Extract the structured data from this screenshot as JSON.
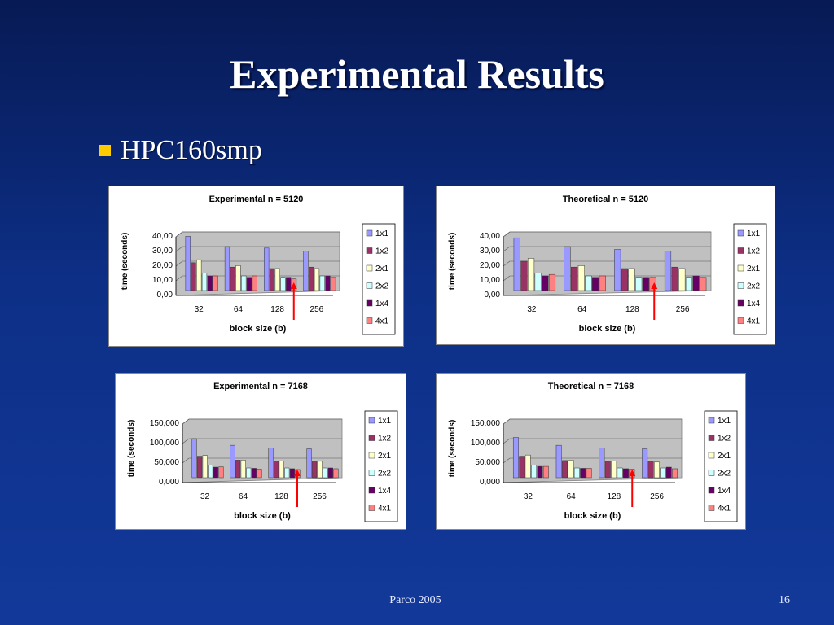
{
  "slide": {
    "title": "Experimental Results",
    "bullet": "HPC160smp",
    "footer_left": "Parco 2005",
    "footer_right": "16"
  },
  "colors": {
    "accent_bullet": "#ffcc00",
    "plot_area": "#c0c0c0",
    "arrow": "#ff0000"
  },
  "chart_data": [
    {
      "type": "bar",
      "title": "Experimental n = 5120",
      "xlabel": "block size (b)",
      "ylabel": "time (seconds)",
      "categories": [
        "32",
        "64",
        "128",
        "256"
      ],
      "ylim": [
        0,
        40
      ],
      "yticks": [
        "0,00",
        "10,00",
        "20,00",
        "30,00",
        "40,00"
      ],
      "arrow_category": "128",
      "series": [
        {
          "name": "1x1",
          "color": "#9999ff",
          "values": [
            37,
            30,
            29,
            27
          ]
        },
        {
          "name": "1x2",
          "color": "#993366",
          "values": [
            19,
            16,
            15,
            16
          ]
        },
        {
          "name": "2x1",
          "color": "#ffffcc",
          "values": [
            21,
            17,
            15,
            15
          ]
        },
        {
          "name": "2x2",
          "color": "#ccffff",
          "values": [
            12,
            10,
            9,
            10
          ]
        },
        {
          "name": "1x4",
          "color": "#660066",
          "values": [
            10,
            9,
            9,
            10
          ]
        },
        {
          "name": "4x1",
          "color": "#ff8080",
          "values": [
            10,
            10,
            8,
            9
          ]
        }
      ]
    },
    {
      "type": "bar",
      "title": "Theoretical n = 5120",
      "xlabel": "block size (b)",
      "ylabel": "time (seconds)",
      "categories": [
        "32",
        "64",
        "128",
        "256"
      ],
      "ylim": [
        0,
        40
      ],
      "yticks": [
        "0,00",
        "10,00",
        "20,00",
        "30,00",
        "40,00"
      ],
      "arrow_category": "128",
      "series": [
        {
          "name": "1x1",
          "color": "#9999ff",
          "values": [
            36,
            30,
            28,
            27
          ]
        },
        {
          "name": "1x2",
          "color": "#993366",
          "values": [
            20,
            16,
            15,
            16
          ]
        },
        {
          "name": "2x1",
          "color": "#ffffcc",
          "values": [
            22,
            17,
            15,
            15
          ]
        },
        {
          "name": "2x2",
          "color": "#ccffff",
          "values": [
            12,
            10,
            9,
            9
          ]
        },
        {
          "name": "1x4",
          "color": "#660066",
          "values": [
            10,
            9,
            9,
            10
          ]
        },
        {
          "name": "4x1",
          "color": "#ff8080",
          "values": [
            11,
            10,
            9,
            9
          ]
        }
      ]
    },
    {
      "type": "bar",
      "title": "Experimental n = 7168",
      "xlabel": "block size (b)",
      "ylabel": "time (seconds)",
      "categories": [
        "32",
        "64",
        "128",
        "256"
      ],
      "ylim": [
        0,
        150
      ],
      "yticks": [
        "0,000",
        "50,000",
        "100,000",
        "150,000"
      ],
      "arrow_category": "128",
      "series": [
        {
          "name": "1x1",
          "color": "#9999ff",
          "values": [
            100,
            83,
            76,
            74
          ]
        },
        {
          "name": "1x2",
          "color": "#993366",
          "values": [
            55,
            45,
            43,
            43
          ]
        },
        {
          "name": "2x1",
          "color": "#ffffcc",
          "values": [
            57,
            45,
            43,
            42
          ]
        },
        {
          "name": "2x2",
          "color": "#ccffff",
          "values": [
            32,
            25,
            25,
            25
          ]
        },
        {
          "name": "1x4",
          "color": "#660066",
          "values": [
            27,
            24,
            23,
            25
          ]
        },
        {
          "name": "4x1",
          "color": "#ff8080",
          "values": [
            28,
            22,
            21,
            23
          ]
        }
      ]
    },
    {
      "type": "bar",
      "title": "Theoretical n = 7168",
      "xlabel": "block size (b)",
      "ylabel": "time (seconds)",
      "categories": [
        "32",
        "64",
        "128",
        "256"
      ],
      "ylim": [
        0,
        150
      ],
      "yticks": [
        "0,000",
        "50,000",
        "100,000",
        "150,000"
      ],
      "arrow_category": "128",
      "series": [
        {
          "name": "1x1",
          "color": "#9999ff",
          "values": [
            103,
            83,
            76,
            74
          ]
        },
        {
          "name": "1x2",
          "color": "#993366",
          "values": [
            55,
            44,
            42,
            42
          ]
        },
        {
          "name": "2x1",
          "color": "#ffffcc",
          "values": [
            58,
            45,
            43,
            40
          ]
        },
        {
          "name": "2x2",
          "color": "#ccffff",
          "values": [
            32,
            25,
            25,
            25
          ]
        },
        {
          "name": "1x4",
          "color": "#660066",
          "values": [
            29,
            24,
            23,
            27
          ]
        },
        {
          "name": "4x1",
          "color": "#ff8080",
          "values": [
            29,
            24,
            22,
            23
          ]
        }
      ]
    }
  ]
}
